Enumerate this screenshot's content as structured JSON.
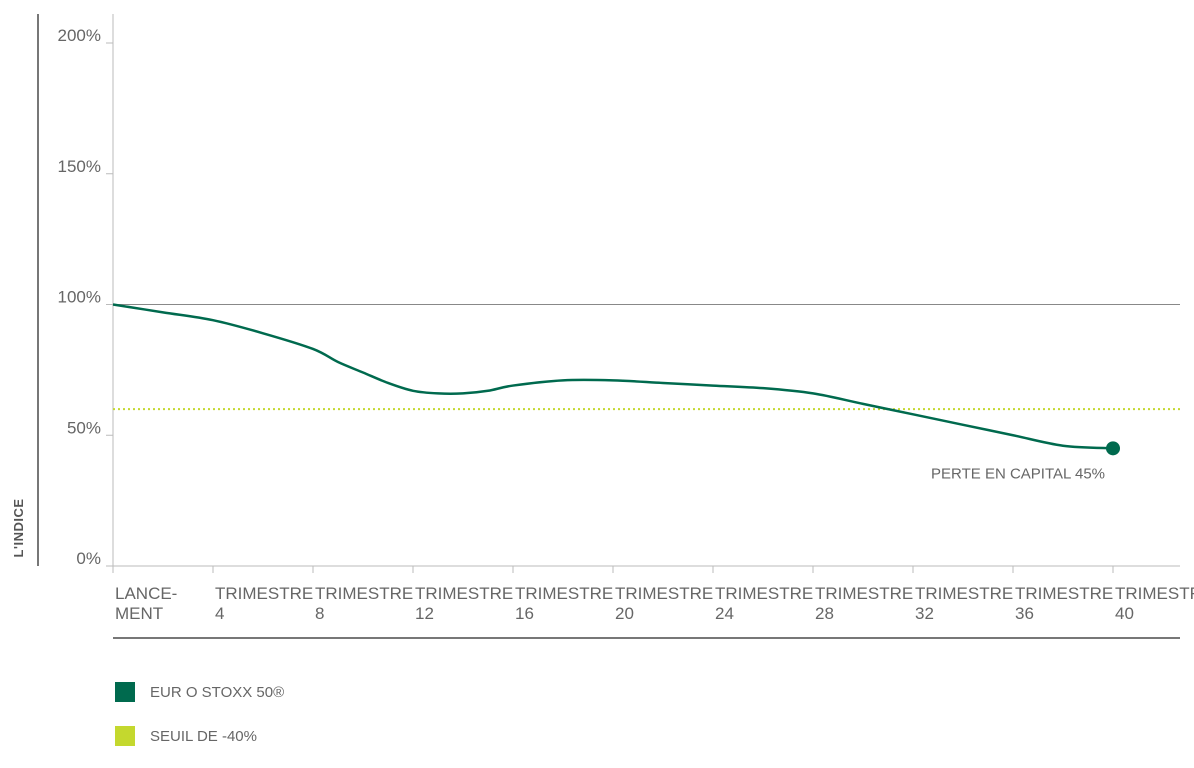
{
  "chart_data": {
    "type": "line",
    "ylabel": "L'INDICE",
    "ylim": [
      0,
      200
    ],
    "yticks": [
      "0%",
      "50%",
      "100%",
      "150%",
      "200%"
    ],
    "categories": [
      [
        "LANCE-",
        "MENT"
      ],
      [
        "TRIMESTRE",
        "4"
      ],
      [
        "TRIMESTRE",
        "8"
      ],
      [
        "TRIMESTRE",
        "12"
      ],
      [
        "TRIMESTRE",
        "16"
      ],
      [
        "TRIMESTRE",
        "20"
      ],
      [
        "TRIMESTRE",
        "24"
      ],
      [
        "TRIMESTRE",
        "28"
      ],
      [
        "TRIMESTRE",
        "32"
      ],
      [
        "TRIMESTRE",
        "36"
      ],
      [
        "TRIMESTRE",
        "40"
      ]
    ],
    "series": [
      {
        "name": "EUR O STOXX 50®",
        "color": "#006a4e",
        "x": [
          0,
          2,
          4,
          6,
          8,
          9,
          10,
          11,
          12,
          13,
          14,
          15,
          16,
          18,
          20,
          22,
          24,
          26,
          28,
          30,
          32,
          34,
          36,
          38,
          40
        ],
        "y": [
          100,
          97,
          94,
          89,
          83,
          78,
          74,
          70,
          67,
          66,
          66,
          67,
          69,
          71,
          71,
          70,
          69,
          68,
          66,
          62,
          58,
          54,
          50,
          46,
          45
        ]
      }
    ],
    "threshold": {
      "name": "SEUIL DE -40%",
      "value": 60,
      "color": "#c4d82e"
    },
    "reference_line": 100,
    "end_marker": {
      "x": 40,
      "y": 45
    },
    "annotation": "PERTE EN CAPITAL 45%",
    "legend_position": "bottom-left"
  },
  "legend": [
    {
      "label": "EUR O STOXX 50®",
      "color": "#006a4e"
    },
    {
      "label": "SEUIL DE -40%",
      "color": "#c4d82e"
    }
  ]
}
